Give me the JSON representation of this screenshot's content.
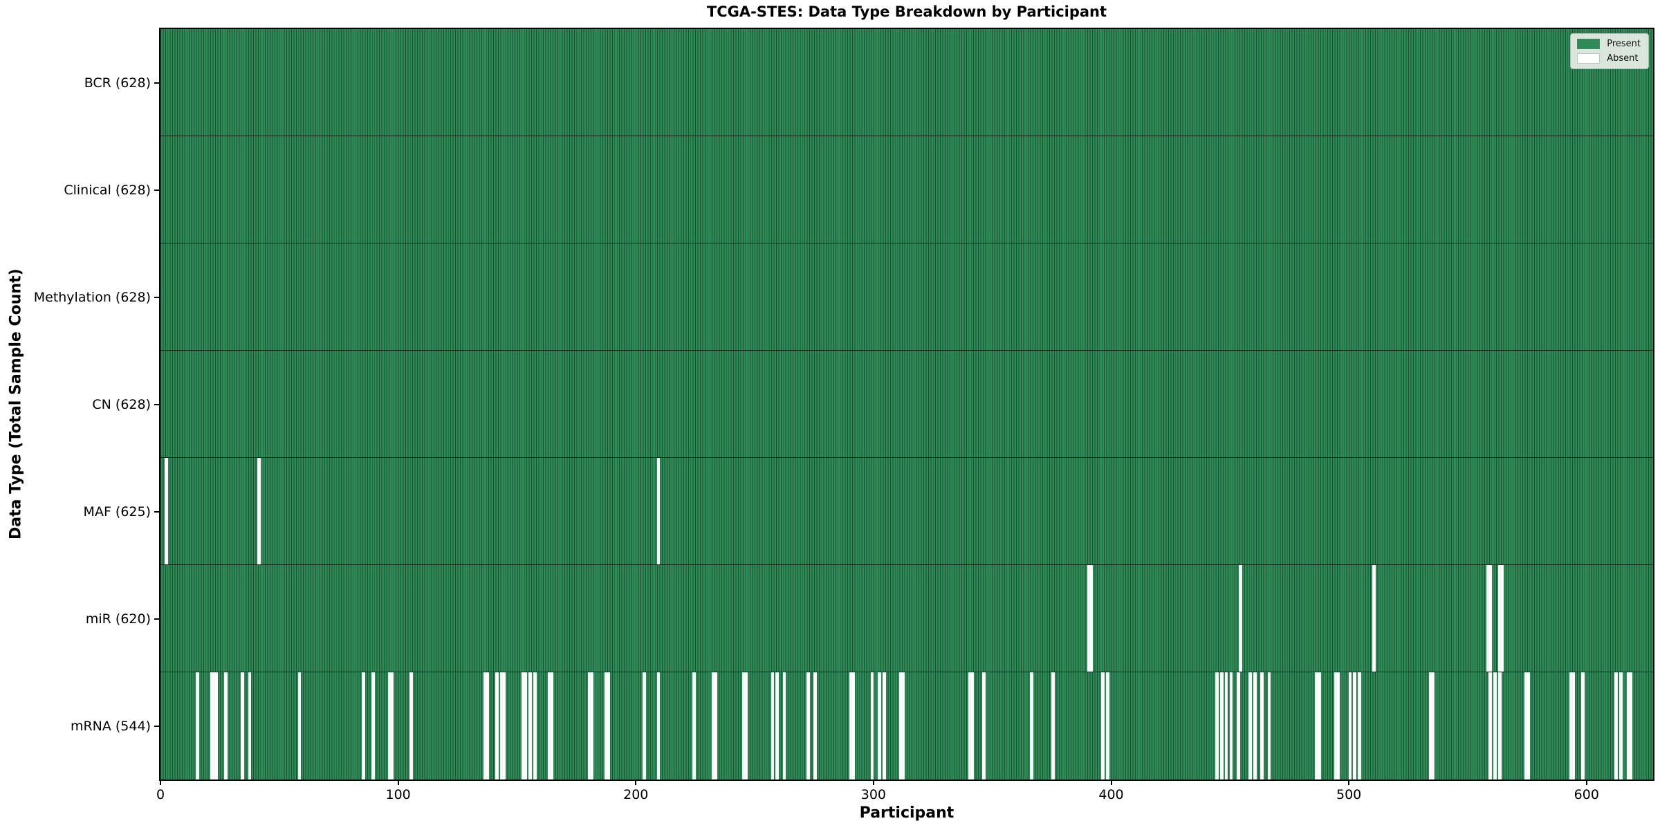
{
  "chart_data": {
    "type": "heatmap",
    "title": "TCGA-STES: Data Type Breakdown by Participant",
    "xlabel": "Participant",
    "ylabel": "Data Type (Total Sample Count)",
    "n_participants": 628,
    "xlim": [
      0,
      628
    ],
    "x_ticks": [
      0,
      100,
      200,
      300,
      400,
      500,
      600
    ],
    "grid": false,
    "legend_position": "upper right",
    "legend": [
      {
        "label": "Present",
        "color": "#2e8b57"
      },
      {
        "label": "Absent",
        "color": "#ffffff"
      }
    ],
    "colors": {
      "present_fill": "#2e8b57",
      "bar_edge": "#1c4f31",
      "absent_fill": "#ffffff",
      "axis": "#000000"
    },
    "rows": [
      {
        "name": "BCR",
        "label": "BCR (628)",
        "count": 628,
        "absent_participants": []
      },
      {
        "name": "Clinical",
        "label": "Clinical (628)",
        "count": 628,
        "absent_participants": []
      },
      {
        "name": "Methylation",
        "label": "Methylation (628)",
        "count": 628,
        "absent_participants": []
      },
      {
        "name": "CN",
        "label": "CN (628)",
        "count": 628,
        "absent_participants": []
      },
      {
        "name": "MAF",
        "label": "MAF (625)",
        "count": 625,
        "absent_participants": [
          2,
          41,
          209
        ]
      },
      {
        "name": "miR",
        "label": "miR (620)",
        "count": 620,
        "absent_participants": [
          390,
          391,
          454,
          510,
          558,
          559,
          563,
          564
        ]
      },
      {
        "name": "mRNA",
        "label": "mRNA (544)",
        "count": 544,
        "absent_participants": [
          15,
          21,
          22,
          23,
          27,
          34,
          37,
          58,
          85,
          89,
          96,
          97,
          105,
          136,
          137,
          141,
          143,
          144,
          152,
          153,
          155,
          157,
          163,
          164,
          180,
          181,
          187,
          188,
          203,
          209,
          224,
          232,
          233,
          245,
          246,
          257,
          259,
          262,
          272,
          275,
          290,
          291,
          299,
          302,
          304,
          311,
          312,
          340,
          341,
          346,
          366,
          375,
          396,
          398,
          444,
          446,
          448,
          450,
          453,
          458,
          460,
          463,
          466,
          486,
          487,
          494,
          495,
          500,
          502,
          504,
          534,
          535,
          559,
          561,
          563,
          574,
          575,
          593,
          594,
          598,
          612,
          614,
          617,
          618
        ]
      }
    ]
  }
}
